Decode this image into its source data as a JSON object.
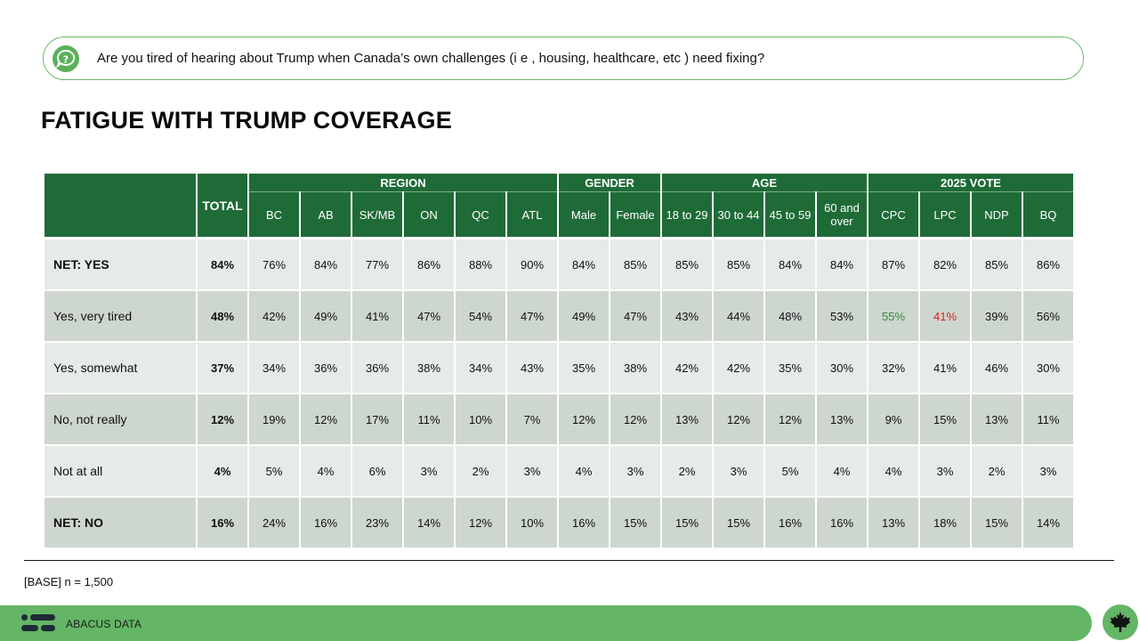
{
  "question": {
    "icon": "question-icon",
    "text": "Are you tired of hearing about Trump when Canada’s own challenges (i e , housing, healthcare, etc ) need fixing?"
  },
  "title": "FATIGUE WITH TRUMP COVERAGE",
  "table": {
    "total_label": "TOTAL",
    "groups": [
      {
        "label": "REGION",
        "span": 6
      },
      {
        "label": "GENDER",
        "span": 2
      },
      {
        "label": "AGE",
        "span": 4
      },
      {
        "label": "2025 VOTE",
        "span": 4
      }
    ],
    "columns": [
      "BC",
      "AB",
      "SK/MB",
      "ON",
      "QC",
      "ATL",
      "Male",
      "Female",
      "18 to 29",
      "30 to 44",
      "45 to 59",
      "60 and over",
      "CPC",
      "LPC",
      "NDP",
      "BQ"
    ],
    "rows": [
      {
        "label": "NET: YES",
        "total": "84%",
        "values": [
          "76%",
          "84%",
          "77%",
          "86%",
          "88%",
          "90%",
          "84%",
          "85%",
          "85%",
          "85%",
          "84%",
          "84%",
          "87%",
          "82%",
          "85%",
          "86%"
        ]
      },
      {
        "label": "Yes, very tired",
        "total": "48%",
        "values": [
          "42%",
          "49%",
          "41%",
          "47%",
          "54%",
          "47%",
          "49%",
          "47%",
          "43%",
          "44%",
          "48%",
          "53%",
          "55%",
          "41%",
          "39%",
          "56%"
        ]
      },
      {
        "label": "Yes, somewhat",
        "total": "37%",
        "values": [
          "34%",
          "36%",
          "36%",
          "38%",
          "34%",
          "43%",
          "35%",
          "38%",
          "42%",
          "42%",
          "35%",
          "30%",
          "32%",
          "41%",
          "46%",
          "30%"
        ]
      },
      {
        "label": "No, not really",
        "total": "12%",
        "values": [
          "19%",
          "12%",
          "17%",
          "11%",
          "10%",
          "7%",
          "12%",
          "12%",
          "13%",
          "12%",
          "12%",
          "13%",
          "9%",
          "15%",
          "13%",
          "11%"
        ]
      },
      {
        "label": "Not at all",
        "total": "4%",
        "values": [
          "5%",
          "4%",
          "6%",
          "3%",
          "2%",
          "3%",
          "4%",
          "3%",
          "2%",
          "3%",
          "5%",
          "4%",
          "4%",
          "3%",
          "2%",
          "3%"
        ]
      },
      {
        "label": "NET: NO",
        "total": "16%",
        "values": [
          "24%",
          "16%",
          "23%",
          "14%",
          "12%",
          "10%",
          "16%",
          "15%",
          "15%",
          "15%",
          "16%",
          "16%",
          "13%",
          "18%",
          "15%",
          "14%"
        ]
      }
    ],
    "highlights": [
      {
        "row": 1,
        "col": 12,
        "color": "#2f8f3a"
      },
      {
        "row": 1,
        "col": 13,
        "color": "#e01b1b"
      }
    ]
  },
  "base_note": "[BASE] n = 1,500",
  "footer": {
    "brand": "ABACUS DATA",
    "logo_icon": "abacus-logo-icon",
    "badge_icon": "maple-leaf-icon"
  },
  "colors": {
    "header_green": "#1f6b38",
    "accent_green": "#64b566",
    "row_light": "#e5ebe6",
    "row_dark": "#cdd6cf"
  }
}
